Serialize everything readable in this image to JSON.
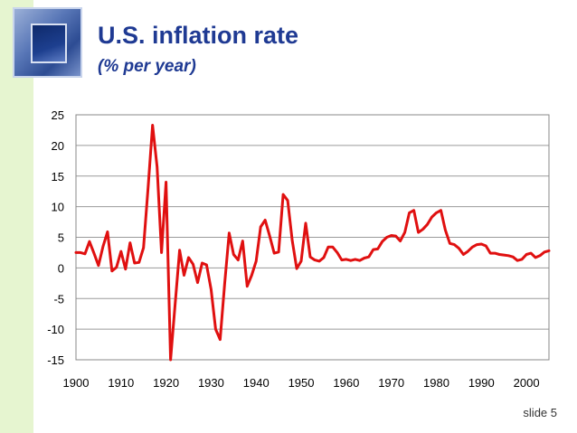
{
  "slide": {
    "title": "U.S. inflation rate",
    "subtitle": "(% per year)",
    "slide_number": "slide 5",
    "accent_color": "#1f3a93",
    "side_band_color": "#e6f5d0",
    "logo_icon": "blue-square-logo-icon"
  },
  "chart_data": {
    "type": "line",
    "title": "U.S. inflation rate",
    "subtitle": "(% per year)",
    "xlabel": "",
    "ylabel": "",
    "xlim": [
      1900,
      2005
    ],
    "ylim": [
      -15,
      25
    ],
    "x_ticks": [
      1900,
      1910,
      1920,
      1930,
      1940,
      1950,
      1960,
      1970,
      1980,
      1990,
      2000
    ],
    "y_ticks": [
      25,
      20,
      15,
      10,
      5,
      0,
      -5,
      -10,
      -15
    ],
    "grid": "horizontal",
    "legend": "none",
    "series": [
      {
        "name": "Inflation rate",
        "color": "#e01010",
        "x": [
          1900,
          1901,
          1902,
          1903,
          1904,
          1905,
          1906,
          1907,
          1908,
          1909,
          1910,
          1911,
          1912,
          1913,
          1914,
          1915,
          1916,
          1917,
          1918,
          1919,
          1920,
          1921,
          1922,
          1923,
          1924,
          1925,
          1926,
          1927,
          1928,
          1929,
          1930,
          1931,
          1932,
          1933,
          1934,
          1935,
          1936,
          1937,
          1938,
          1939,
          1940,
          1941,
          1942,
          1943,
          1944,
          1945,
          1946,
          1947,
          1948,
          1949,
          1950,
          1951,
          1952,
          1953,
          1954,
          1955,
          1956,
          1957,
          1958,
          1959,
          1960,
          1961,
          1962,
          1963,
          1964,
          1965,
          1966,
          1967,
          1968,
          1969,
          1970,
          1971,
          1972,
          1973,
          1974,
          1975,
          1976,
          1977,
          1978,
          1979,
          1980,
          1981,
          1982,
          1983,
          1984,
          1985,
          1986,
          1987,
          1988,
          1989,
          1990,
          1991,
          1992,
          1993,
          1994,
          1995,
          1996,
          1997,
          1998,
          1999,
          2000,
          2001,
          2002,
          2003,
          2004,
          2005
        ],
        "values": [
          2.5,
          2.5,
          2.3,
          4.3,
          2.4,
          0.4,
          3.5,
          5.9,
          -0.5,
          0.1,
          2.7,
          -0.2,
          4.1,
          0.8,
          0.9,
          3.3,
          13.0,
          23.3,
          16.5,
          2.5,
          14.0,
          -15.0,
          -6.0,
          2.9,
          -1.2,
          1.7,
          0.6,
          -2.4,
          0.8,
          0.5,
          -3.5,
          -10.0,
          -11.7,
          -2.6,
          5.7,
          2.2,
          1.3,
          4.4,
          -3.0,
          -1.2,
          1.1,
          6.7,
          7.8,
          5.2,
          2.4,
          2.6,
          12.0,
          11.0,
          4.5,
          -0.1,
          1.1,
          7.3,
          1.8,
          1.3,
          1.1,
          1.7,
          3.4,
          3.4,
          2.5,
          1.3,
          1.4,
          1.2,
          1.4,
          1.2,
          1.6,
          1.8,
          3.0,
          3.1,
          4.3,
          5.0,
          5.3,
          5.2,
          4.4,
          5.8,
          9.0,
          9.4,
          5.8,
          6.3,
          7.1,
          8.3,
          9.0,
          9.4,
          6.2,
          4.0,
          3.8,
          3.2,
          2.2,
          2.7,
          3.4,
          3.8,
          3.9,
          3.6,
          2.4,
          2.4,
          2.2,
          2.1,
          2.0,
          1.8,
          1.2,
          1.4,
          2.2,
          2.4,
          1.7,
          2.0,
          2.6,
          2.8
        ]
      }
    ]
  }
}
